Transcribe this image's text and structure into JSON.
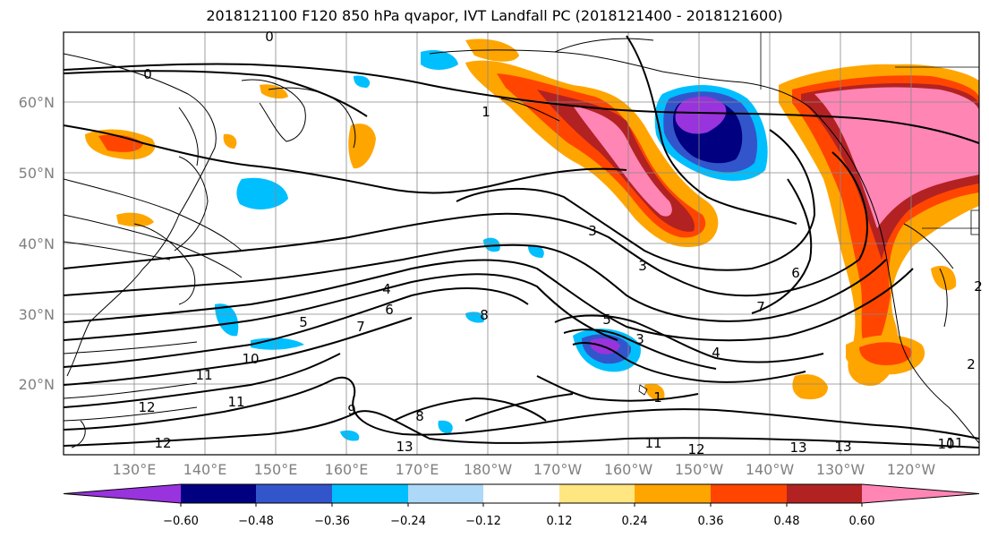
{
  "title": "2018121100 F120 850 hPa qvapor, IVT Landfall PC (2018121400 - 2018121600)",
  "map": {
    "lat_labels": [
      "60°N",
      "50°N",
      "40°N",
      "30°N",
      "20°N"
    ],
    "lon_labels": [
      "130°E",
      "140°E",
      "150°E",
      "160°E",
      "170°E",
      "180°W",
      "170°W",
      "160°W",
      "150°W",
      "140°W",
      "130°W",
      "120°W"
    ],
    "contour_labels": [
      "0",
      "0",
      "1",
      "3",
      "3",
      "4",
      "5",
      "6",
      "7",
      "8",
      "8",
      "9",
      "10",
      "11",
      "11",
      "12",
      "12",
      "13",
      "13",
      "13",
      "12",
      "11",
      "11",
      "10",
      "5",
      "3",
      "4",
      "6",
      "7",
      "1",
      "2",
      "2"
    ]
  },
  "colorbar": {
    "colors": [
      "#9933dd",
      "#000080",
      "#3355cc",
      "#00bfff",
      "#add8f7",
      "#ffffff",
      "#ffe680",
      "#ffa500",
      "#ff4500",
      "#b22222",
      "#ff85b5"
    ],
    "tick_labels": [
      "−0.60",
      "−0.48",
      "−0.36",
      "−0.24",
      "−0.12",
      "0.12",
      "0.24",
      "0.36",
      "0.48",
      "0.60"
    ]
  }
}
